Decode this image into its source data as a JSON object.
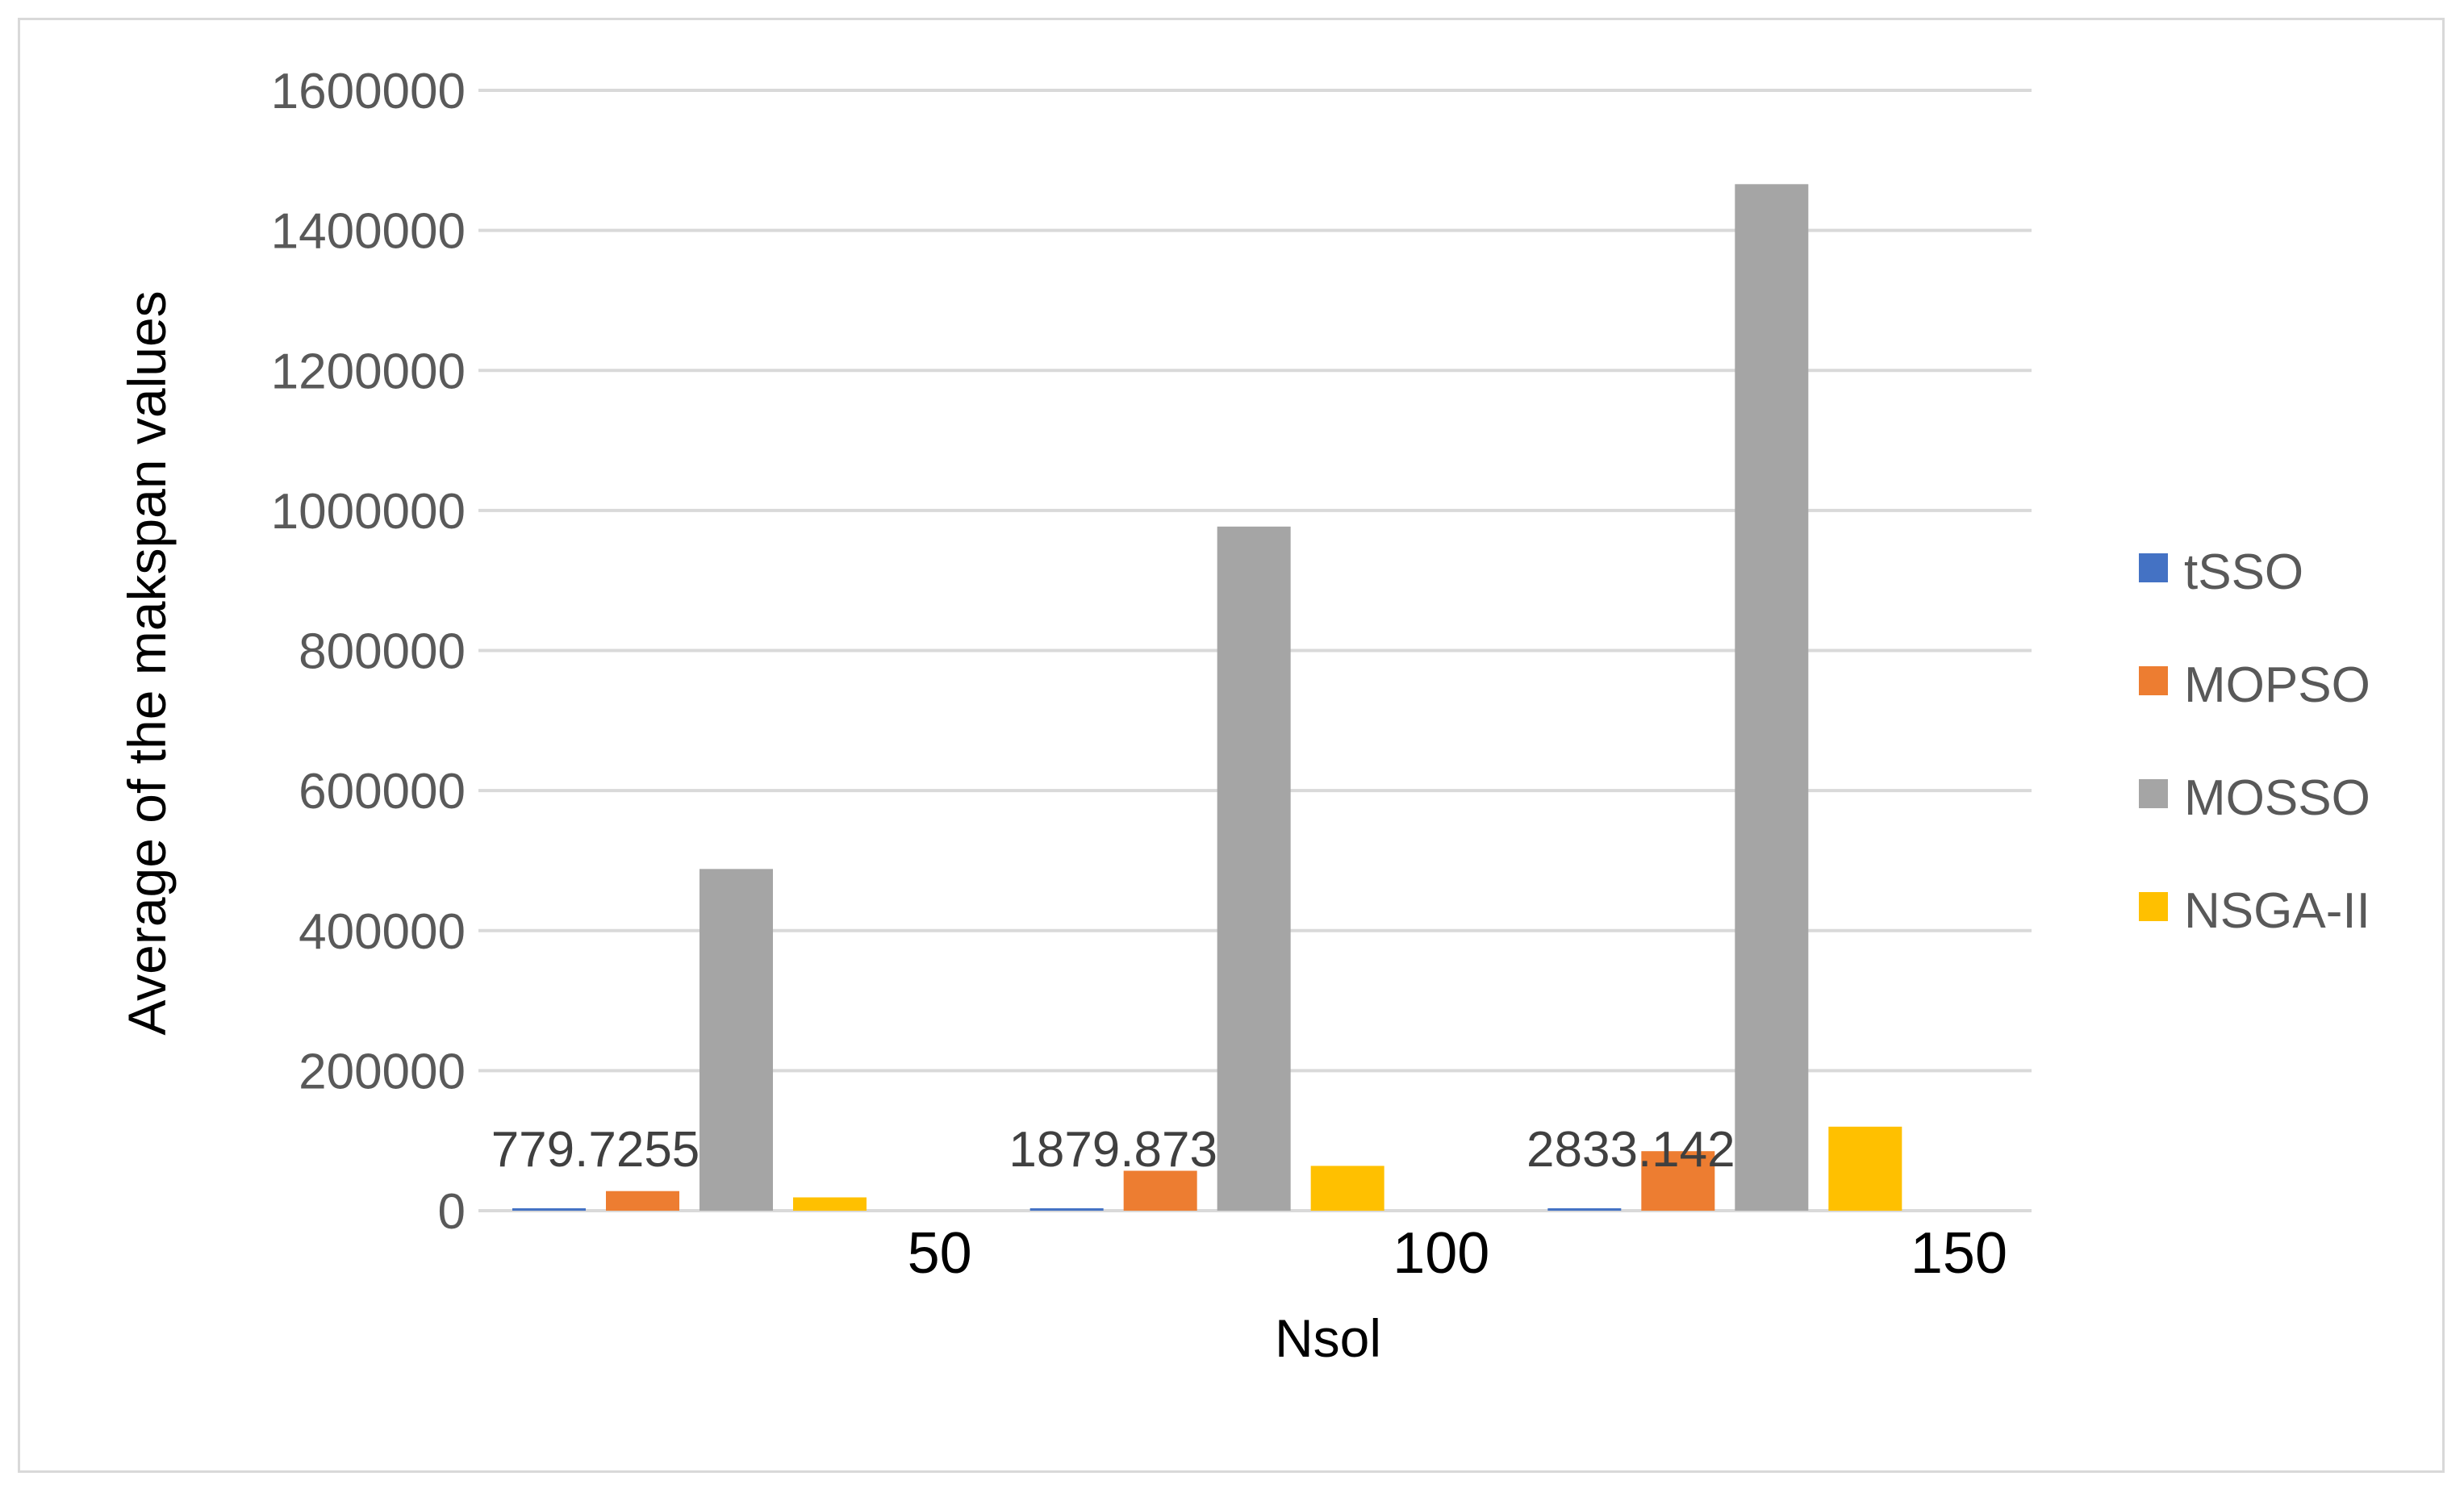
{
  "chart_data": {
    "type": "bar",
    "title": "",
    "xlabel": "Nsol",
    "ylabel": "Average of the makspan values",
    "categories": [
      "50",
      "100",
      "150"
    ],
    "ylim": [
      0,
      1600000
    ],
    "yticks": [
      0,
      200000,
      400000,
      600000,
      800000,
      1000000,
      1200000,
      1400000,
      1600000
    ],
    "ytick_labels": [
      "0",
      "200000",
      "400000",
      "600000",
      "800000",
      "1000000",
      "1200000",
      "1400000",
      "1600000"
    ],
    "grid": true,
    "legend_position": "right",
    "series": [
      {
        "name": "tSSO",
        "color": "#4472C4",
        "values": [
          779.7255,
          1879.873,
          2833.142
        ],
        "data_labels": [
          "779.7255",
          "1879.873",
          "2833.142"
        ]
      },
      {
        "name": "MOPSO",
        "color": "#ED7D31",
        "values": [
          28000,
          57000,
          85000
        ]
      },
      {
        "name": "MOSSO",
        "color": "#A5A5A5",
        "values": [
          488000,
          977000,
          1466000
        ]
      },
      {
        "name": "NSGA-II",
        "color": "#FFC000",
        "values": [
          19000,
          64000,
          120000
        ]
      }
    ]
  }
}
